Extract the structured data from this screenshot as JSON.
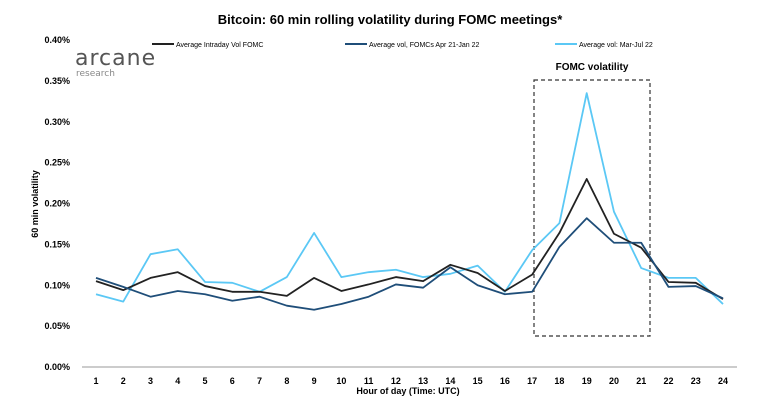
{
  "chart_data": {
    "type": "line",
    "title": "Bitcoin: 60 min rolling volatility during FOMC meetings*",
    "xlabel": "Hour of day (Time: UTC)",
    "ylabel": "60 min volatility",
    "x": [
      1,
      2,
      3,
      4,
      5,
      6,
      7,
      8,
      9,
      10,
      11,
      12,
      13,
      14,
      15,
      16,
      17,
      18,
      19,
      20,
      21,
      22,
      23,
      24
    ],
    "ylim": [
      0,
      0.4
    ],
    "yticks": [
      "0.00%",
      "0.05%",
      "0.10%",
      "0.15%",
      "0.20%",
      "0.25%",
      "0.30%",
      "0.35%",
      "0.40%"
    ],
    "grid": false,
    "legend": "top",
    "series": [
      {
        "name": "Average Intraday Vol FOMC",
        "color": "#222222",
        "values": [
          0.105,
          0.094,
          0.109,
          0.116,
          0.099,
          0.092,
          0.092,
          0.087,
          0.109,
          0.093,
          0.101,
          0.11,
          0.105,
          0.125,
          0.115,
          0.093,
          0.113,
          0.164,
          0.23,
          0.163,
          0.146,
          0.104,
          0.103,
          0.083
        ]
      },
      {
        "name": "Average vol, FOMCs Apr 21-Jan 22",
        "color": "#1f4e79",
        "values": [
          0.109,
          0.098,
          0.086,
          0.093,
          0.089,
          0.081,
          0.086,
          0.075,
          0.07,
          0.077,
          0.086,
          0.101,
          0.097,
          0.122,
          0.1,
          0.089,
          0.092,
          0.147,
          0.182,
          0.152,
          0.152,
          0.098,
          0.099,
          0.084
        ]
      },
      {
        "name": "Average vol: Mar-Jul 22",
        "color": "#5bc8f5",
        "values": [
          0.089,
          0.08,
          0.138,
          0.144,
          0.104,
          0.103,
          0.092,
          0.11,
          0.164,
          0.11,
          0.116,
          0.119,
          0.11,
          0.114,
          0.124,
          0.092,
          0.143,
          0.176,
          0.335,
          0.19,
          0.121,
          0.109,
          0.109,
          0.077
        ]
      }
    ],
    "annotations": [
      {
        "text": "FOMC volatility",
        "x_range": [
          17,
          21
        ]
      }
    ]
  },
  "logo": {
    "name": "arcane",
    "sub": "research"
  }
}
